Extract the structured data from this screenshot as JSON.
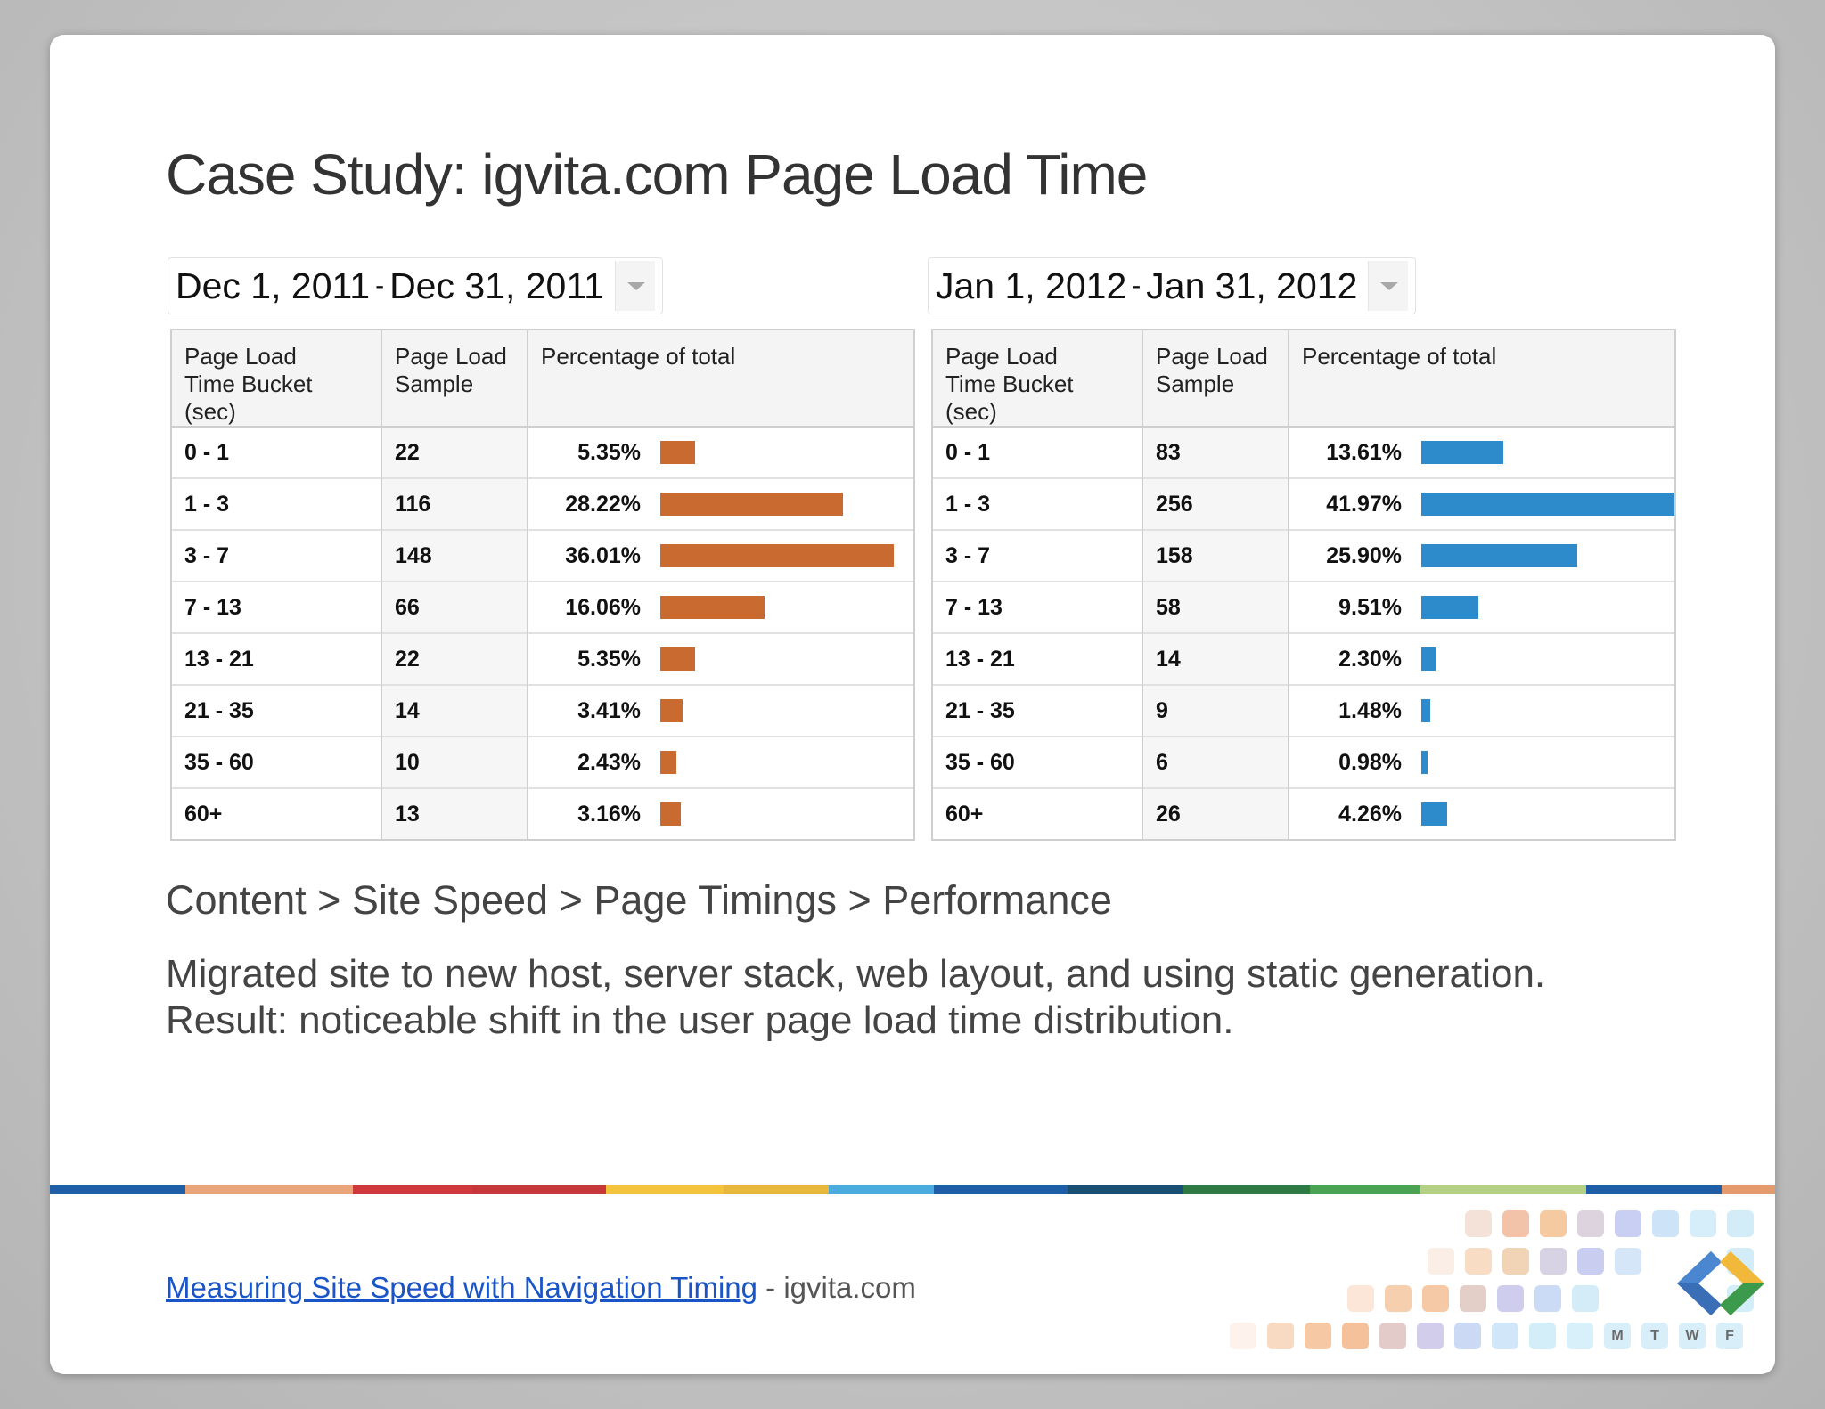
{
  "slide": {
    "title": "Case Study: igvita.com Page Load Time",
    "caption_path": "Content > Site Speed > Page Timings > Performance",
    "caption_line1": "Migrated site to new host, server stack, web layout, and using static generation.",
    "caption_line2": "Result: noticeable shift in the user page load time distribution.",
    "footer_link": "Measuring Site Speed with Navigation Timing",
    "footer_suffix": " - igvita.com",
    "day_letters": [
      "M",
      "T",
      "W",
      "F"
    ]
  },
  "colors": {
    "dec_bar": "#c96a30",
    "jan_bar": "#2e8bcb",
    "stripe": [
      "#1e5fa8",
      "#e8a57a",
      "#d0393b",
      "#c6373a",
      "#f2c33b",
      "#e8b83c",
      "#4aacdd",
      "#1d5ea6",
      "#1a4f74",
      "#2d7a45",
      "#4aa352",
      "#b3d084",
      "#1d5ea6",
      "#e59a6e"
    ]
  },
  "chart_data": [
    {
      "type": "table",
      "date_range": {
        "start": "Dec 1, 2011",
        "sep": "-",
        "end": "Dec 31, 2011"
      },
      "columns": [
        "Page Load Time Bucket (sec)",
        "Page Load Sample",
        "Percentage of total"
      ],
      "columns_lines": [
        [
          "Page Load",
          "Time Bucket (sec)"
        ],
        [
          "Page Load",
          "Sample"
        ],
        [
          "Percentage of total",
          ""
        ]
      ],
      "buckets": [
        "0 - 1",
        "1 - 3",
        "3 - 7",
        "7 - 13",
        "13 - 21",
        "21 - 35",
        "35 - 60",
        "60+"
      ],
      "samples": [
        "22",
        "116",
        "148",
        "66",
        "22",
        "14",
        "10",
        "13"
      ],
      "percent_labels": [
        "5.35%",
        "28.22%",
        "36.01%",
        "16.06%",
        "5.35%",
        "3.41%",
        "2.43%",
        "3.16%"
      ],
      "percent_values": [
        5.35,
        28.22,
        36.01,
        16.06,
        5.35,
        3.41,
        2.43,
        3.16
      ],
      "bar_max": 36.01
    },
    {
      "type": "table",
      "date_range": {
        "start": "Jan 1, 2012",
        "sep": "-",
        "end": "Jan 31, 2012"
      },
      "columns": [
        "Page Load Time Bucket (sec)",
        "Page Load Sample",
        "Percentage of total"
      ],
      "columns_lines": [
        [
          "Page Load",
          "Time Bucket (sec)"
        ],
        [
          "Page Load",
          "Sample"
        ],
        [
          "Percentage of total",
          ""
        ]
      ],
      "buckets": [
        "0 - 1",
        "1 - 3",
        "3 - 7",
        "7 - 13",
        "13 - 21",
        "21 - 35",
        "35 - 60",
        "60+"
      ],
      "samples": [
        "83",
        "256",
        "158",
        "58",
        "14",
        "9",
        "6",
        "26"
      ],
      "percent_labels": [
        "13.61%",
        "41.97%",
        "25.90%",
        "9.51%",
        "2.30%",
        "1.48%",
        "0.98%",
        "4.26%"
      ],
      "percent_values": [
        13.61,
        41.97,
        25.9,
        9.51,
        2.3,
        1.48,
        0.98,
        4.26
      ],
      "bar_max": 41.97
    }
  ]
}
